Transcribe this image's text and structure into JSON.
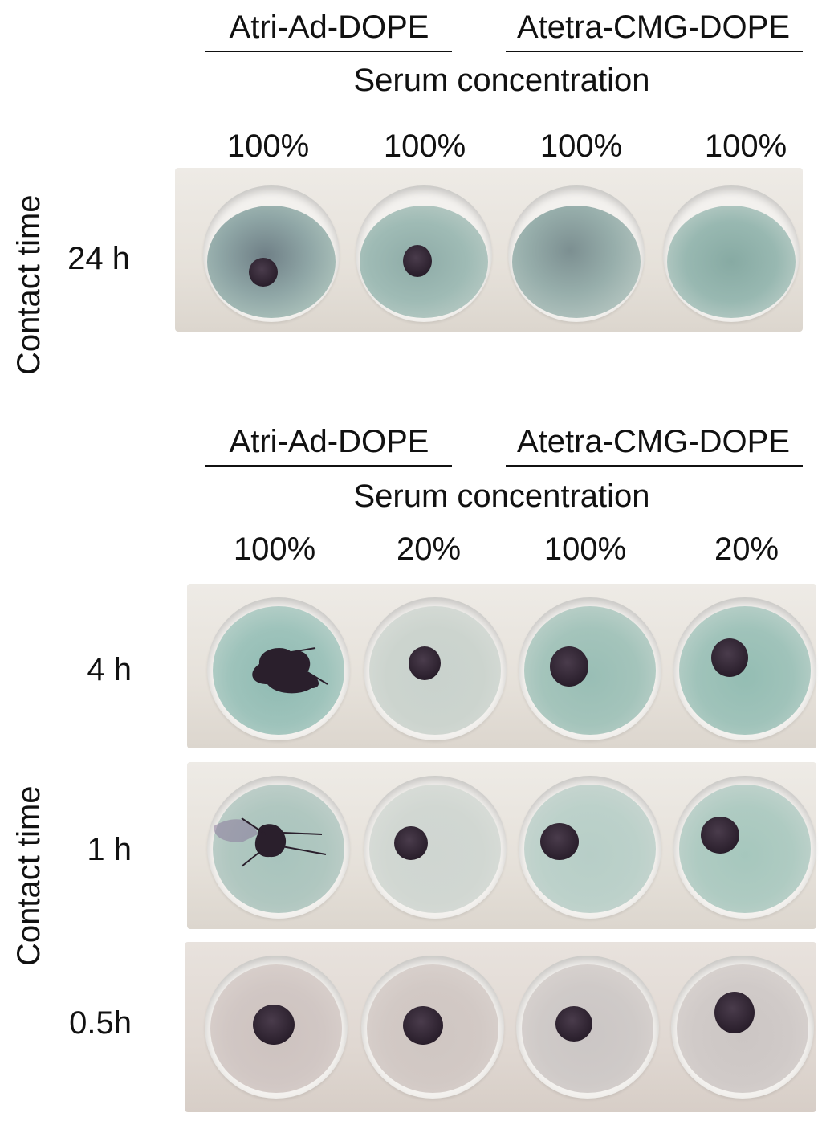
{
  "top_panel": {
    "group_labels": [
      "Atri-Ad-DOPE",
      "Atetra-CMG-DOPE"
    ],
    "axis_label": "Serum concentration",
    "column_labels": [
      "100%",
      "100%",
      "100%",
      "100%"
    ],
    "side_label": "Contact time",
    "row_labels": [
      "24 h"
    ]
  },
  "bottom_panel": {
    "group_labels": [
      "Atri-Ad-DOPE",
      "Atetra-CMG-DOPE"
    ],
    "axis_label": "Serum concentration",
    "column_labels": [
      "100%",
      "20%",
      "100%",
      "20%"
    ],
    "side_label": "Contact time",
    "row_labels": [
      "4 h",
      "1 h",
      "0.5h"
    ]
  },
  "colors": {
    "well_blue_green": "#8fb7b0",
    "well_grey": "#cfc7c3",
    "clot": "#2a1f2c"
  }
}
